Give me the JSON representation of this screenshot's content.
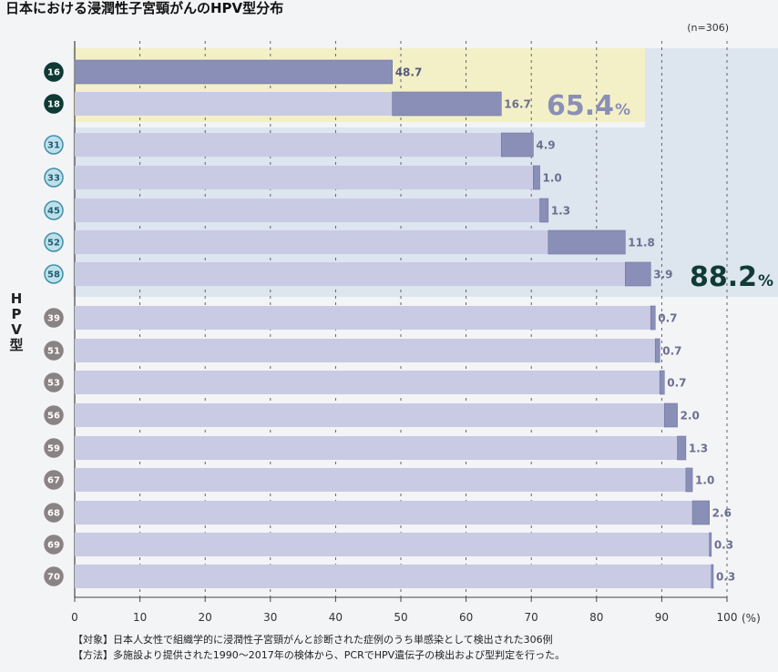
{
  "chart_data": {
    "type": "bar",
    "stacked": "cumulative-horizontal",
    "title": "日本における浸潤性子宮頸がんのHPV型分布",
    "sample_note": "(n=306)",
    "ylabel": "HPV型",
    "x_unit": "(%)",
    "xlim": [
      0,
      100
    ],
    "x_ticks": [
      "0",
      "10",
      "20",
      "30",
      "40",
      "50",
      "60",
      "70",
      "80",
      "90",
      "100"
    ],
    "grid": "vertical-dashed",
    "categories": [
      "16",
      "18",
      "31",
      "33",
      "45",
      "52",
      "58",
      "39",
      "51",
      "53",
      "56",
      "59",
      "67",
      "68",
      "69",
      "70"
    ],
    "values": [
      48.7,
      16.7,
      4.9,
      1.0,
      1.3,
      11.8,
      3.9,
      0.7,
      0.7,
      0.7,
      2.0,
      1.3,
      1.0,
      2.6,
      0.3,
      0.3
    ],
    "value_labels": [
      "48.7",
      "16.7",
      "4.9",
      "1.0",
      "1.3",
      "11.8",
      "3.9",
      "0.7",
      "0.7",
      "0.7",
      "2.0",
      "1.3",
      "1.0",
      "2.6",
      "0.3",
      "0.3"
    ],
    "groups": [
      {
        "count": 2,
        "badge_color": "#0f3a35",
        "badge_border": "#0f3a35",
        "badge_text_color": "#ffffff"
      },
      {
        "count": 5,
        "badge_color": "#bfe0ea",
        "badge_border": "#3f8fa8",
        "badge_text_color": "#1d5f75"
      },
      {
        "count": 9,
        "badge_color": "#8a8383",
        "badge_border": "#8a8383",
        "badge_text_color": "#ffffff"
      }
    ],
    "cumulative_annotations": [
      {
        "rows": [
          0,
          1
        ],
        "number": "65.4",
        "unit": "%",
        "band_color": "#f3f0c8",
        "number_color": "#8a8fb5"
      },
      {
        "rows": [
          0,
          6
        ],
        "number": "88.2",
        "unit": "%",
        "band_color": "#dde5ef",
        "number_color": "#0f3a35"
      }
    ],
    "colors": {
      "base_bar": "#c9cbe4",
      "segment": "#8a8fb8",
      "segment_border": "#6f74a0"
    }
  },
  "footnotes": [
    "【対象】日本人女性で組織学的に浸潤性子宮頸がんと診断された症例のうち単感染として検出された306例",
    "【方法】多施設より提供された1990〜2017年の検体から、PCRでHPV遺伝子の検出および型判定を行った。"
  ]
}
